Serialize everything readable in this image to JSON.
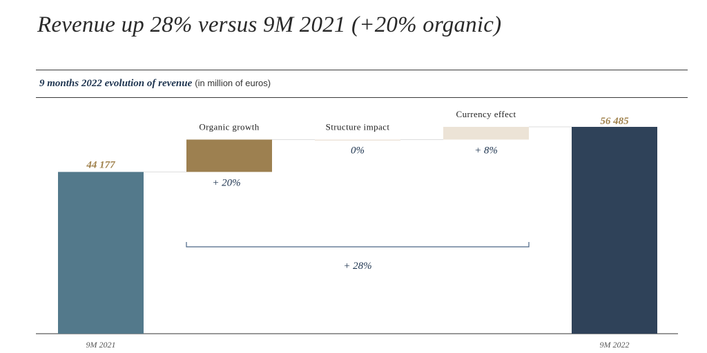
{
  "headline": "Revenue up 28% versus 9M 2021 (+20% organic)",
  "subtitle": {
    "title": "9 months 2022 evolution of revenue",
    "unit": "(in million of euros)"
  },
  "colors": {
    "start": "#53798b",
    "organic": "#9d8050",
    "structure": "#ede4d8",
    "currency": "#ece3d6",
    "end": "#2f4259",
    "value_label": "#a0824d",
    "text_dark": "#1f3550",
    "bracket": "#4a6485"
  },
  "chart_data": {
    "type": "bar",
    "variant": "waterfall",
    "title": "9 months 2022 evolution of revenue",
    "unit": "(in million of euros)",
    "start": {
      "label": "9M 2021",
      "value": 44177,
      "value_label": "44 177"
    },
    "steps": [
      {
        "label": "Organic growth",
        "pct_label": "+ 20%",
        "delta": 8835
      },
      {
        "label": "Structure impact",
        "pct_label": "0%",
        "delta": 0
      },
      {
        "label": "Currency effect",
        "pct_label": "+ 8%",
        "delta": 3473
      }
    ],
    "end": {
      "label": "9M 2022",
      "value": 56485,
      "value_label": "56 485"
    },
    "total_change_label": "+ 28%",
    "ylim": [
      0,
      56485
    ],
    "grid": false,
    "legend": "none"
  }
}
